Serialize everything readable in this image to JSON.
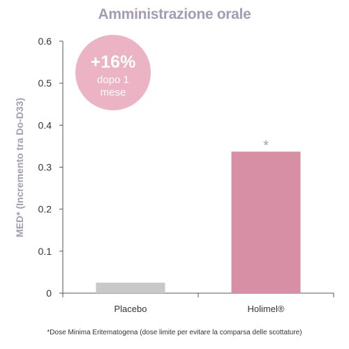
{
  "chart_data": {
    "type": "bar",
    "title": "Amministrazione orale",
    "ylabel": "MED* (Incremento tra Do-D33)",
    "xlabel": "",
    "categories": [
      "Placebo",
      "Holimel®"
    ],
    "values": [
      0.025,
      0.337
    ],
    "bar_colors": [
      "#c8c8c8",
      "#d68fa4"
    ],
    "ylim": [
      0,
      0.6
    ],
    "yticks": [
      0,
      0.1,
      0.2,
      0.3,
      0.4,
      0.5,
      0.6
    ],
    "ytick_labels": [
      "0",
      "0.1",
      "0.2",
      "0.3",
      "0.4",
      "0.5",
      "0.6"
    ],
    "grid": false,
    "significance_marker": {
      "category": "Holimel®",
      "text": "*"
    },
    "badge": {
      "big": "+16%",
      "line1": "dopo 1",
      "line2": "mese",
      "color": "#ebb3c3"
    },
    "footnote": "*Dose Minima Eritematogena (dose limite per evitare la comparsa delle scottature)"
  }
}
